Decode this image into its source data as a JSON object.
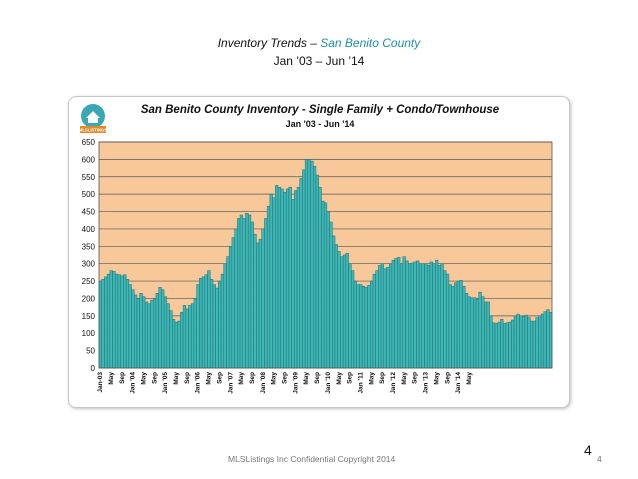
{
  "slide": {
    "title_prefix": "Inventory Trends – ",
    "title_accent": "San Benito County",
    "subtitle": "Jan ’03 – Jun ’14",
    "footer": "MLSListings Inc Confidential Copyright 2014",
    "page_number_large": "4",
    "page_number_small": "4"
  },
  "logo": {
    "name": "MLSListings logo",
    "text": "MLSLISTINGS"
  },
  "chart_data": {
    "type": "area",
    "title": "San Benito County Inventory - Single Family + Condo/Townhouse",
    "subtitle": "Jan '03 - Jun '14",
    "ylim": [
      0,
      650
    ],
    "yticks": [
      0,
      50,
      100,
      150,
      200,
      250,
      300,
      350,
      400,
      450,
      500,
      550,
      600,
      650
    ],
    "grid": true,
    "colors": {
      "plot_background": "#f8c89a",
      "area_fill": "#3fb8b5",
      "bar_line": "#1d6e76",
      "gridline": "#555555"
    },
    "x_tick_labels": [
      "Jan-03",
      "May",
      "Sep",
      "Jan '04",
      "May",
      "Sep",
      "Jan '05",
      "May",
      "Sep",
      "Jan '06",
      "May",
      "Sep",
      "Jan '07",
      "May",
      "Sep",
      "Jan '08",
      "May",
      "Sep",
      "Jan '09",
      "May",
      "Sep",
      "Jan '10",
      "May",
      "Sep",
      "Jan '11",
      "May",
      "Sep",
      "Jan '12",
      "May",
      "Sep",
      "Jan '13",
      "May",
      "Sep",
      "Jan '14",
      "May"
    ],
    "series": [
      {
        "values": [
          250,
          255,
          262,
          270,
          280,
          278,
          270,
          268,
          265,
          268,
          255,
          240,
          225,
          210,
          200,
          215,
          205,
          190,
          185,
          195,
          200,
          215,
          232,
          225,
          205,
          185,
          165,
          140,
          132,
          135,
          160,
          180,
          170,
          180,
          185,
          200,
          240,
          258,
          262,
          268,
          280,
          255,
          240,
          230,
          250,
          270,
          300,
          320,
          350,
          375,
          400,
          430,
          440,
          430,
          445,
          440,
          420,
          385,
          360,
          370,
          400,
          430,
          465,
          500,
          490,
          525,
          520,
          515,
          505,
          515,
          520,
          485,
          510,
          520,
          545,
          570,
          600,
          600,
          595,
          580,
          555,
          520,
          480,
          475,
          450,
          420,
          380,
          355,
          335,
          320,
          325,
          330,
          300,
          280,
          250,
          240,
          240,
          235,
          232,
          238,
          250,
          270,
          280,
          295,
          300,
          285,
          290,
          300,
          310,
          315,
          318,
          300,
          320,
          308,
          300,
          302,
          305,
          308,
          300,
          300,
          300,
          295,
          305,
          300,
          310,
          295,
          300,
          280,
          270,
          240,
          235,
          245,
          250,
          252,
          235,
          215,
          205,
          202,
          202,
          198,
          218,
          205,
          190,
          190,
          150,
          130,
          128,
          132,
          140,
          128,
          130,
          132,
          138,
          150,
          155,
          150,
          148,
          152,
          145,
          135,
          135,
          145,
          150,
          155,
          162,
          168,
          160
        ]
      }
    ]
  }
}
